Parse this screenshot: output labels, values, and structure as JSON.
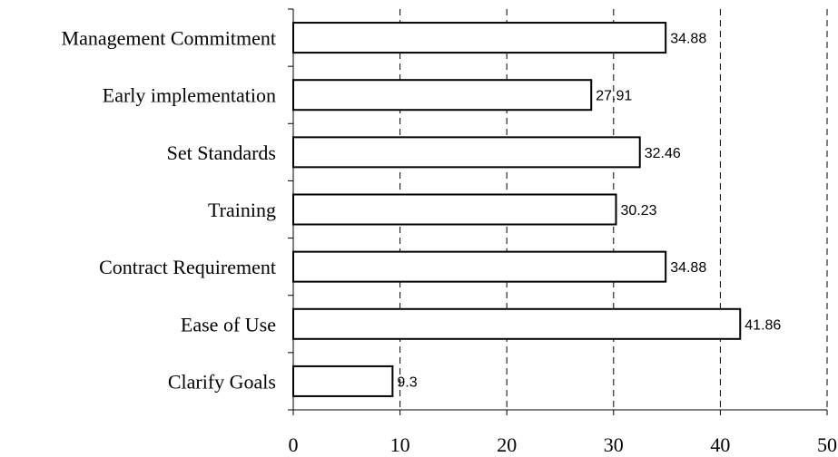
{
  "chart_data": {
    "type": "bar",
    "orientation": "horizontal",
    "categories": [
      "Management Commitment",
      "Early implementation",
      "Set Standards",
      "Training",
      "Contract Requirement",
      "Ease of Use",
      "Clarify Goals"
    ],
    "values": [
      34.88,
      27.91,
      32.46,
      30.23,
      34.88,
      41.86,
      9.3
    ],
    "data_labels": [
      "34.88",
      "27.91",
      "32.46",
      "30.23",
      "34.88",
      "41.86",
      "9.3"
    ],
    "title": "",
    "xlabel": "",
    "ylabel": "",
    "xlim": [
      0,
      50
    ],
    "x_ticks": [
      0,
      10,
      20,
      30,
      40,
      50
    ],
    "x_tick_labels": [
      "0",
      "10",
      "20",
      "30",
      "40",
      "50"
    ],
    "grid": "vertical dashed",
    "legend": "none",
    "colors": {
      "bar_fill": "#ffffff",
      "bar_stroke": "#000000",
      "grid": "#000000",
      "text": "#000000"
    }
  }
}
